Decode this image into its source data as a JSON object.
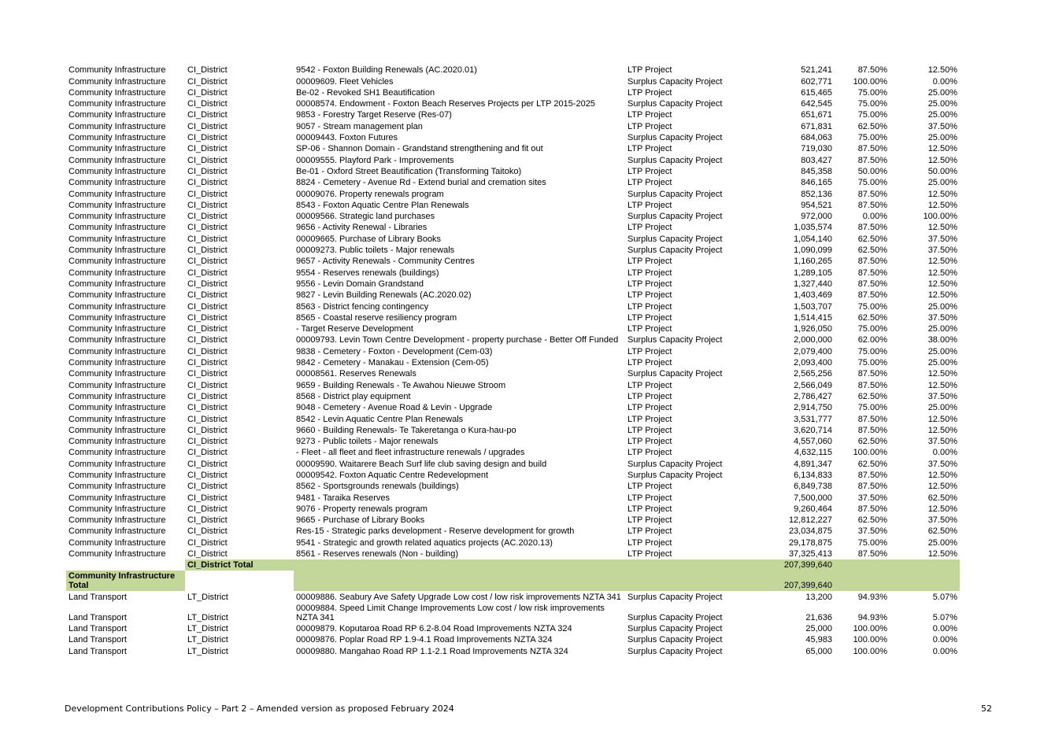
{
  "rows": [
    {
      "type": "data",
      "group": "Community Infrastructure",
      "district": "CI_District",
      "project": "9542 - Foxton Building Renewals (AC.2020.01)",
      "category": "LTP Project",
      "amount": "521,241",
      "pct1": "87.50%",
      "pct2": "12.50%"
    },
    {
      "type": "data",
      "group": "Community Infrastructure",
      "district": "CI_District",
      "project": "00009609. Fleet Vehicles",
      "category": "Surplus Capacity Project",
      "amount": "602,771",
      "pct1": "100.00%",
      "pct2": "0.00%"
    },
    {
      "type": "data",
      "group": "Community Infrastructure",
      "district": "CI_District",
      "project": "Be-02 - Revoked SH1 Beautification",
      "category": "LTP Project",
      "amount": "615,465",
      "pct1": "75.00%",
      "pct2": "25.00%"
    },
    {
      "type": "data",
      "group": "Community Infrastructure",
      "district": "CI_District",
      "project": "00008574. Endowment - Foxton Beach Reserves Projects per LTP 2015-2025",
      "category": "Surplus Capacity Project",
      "amount": "642,545",
      "pct1": "75.00%",
      "pct2": "25.00%"
    },
    {
      "type": "data",
      "group": "Community Infrastructure",
      "district": "CI_District",
      "project": "9853 - Forestry Target Reserve (Res-07)",
      "category": "LTP Project",
      "amount": "651,671",
      "pct1": "75.00%",
      "pct2": "25.00%"
    },
    {
      "type": "data",
      "group": "Community Infrastructure",
      "district": "CI_District",
      "project": "9057 - Stream management plan",
      "category": "LTP Project",
      "amount": "671,831",
      "pct1": "62.50%",
      "pct2": "37.50%"
    },
    {
      "type": "data",
      "group": "Community Infrastructure",
      "district": "CI_District",
      "project": "00009443. Foxton Futures",
      "category": "Surplus Capacity Project",
      "amount": "684,063",
      "pct1": "75.00%",
      "pct2": "25.00%"
    },
    {
      "type": "data",
      "group": "Community Infrastructure",
      "district": "CI_District",
      "project": "SP-06 - Shannon Domain - Grandstand strengthening and fit out",
      "category": "LTP Project",
      "amount": "719,030",
      "pct1": "87.50%",
      "pct2": "12.50%"
    },
    {
      "type": "data",
      "group": "Community Infrastructure",
      "district": "CI_District",
      "project": "00009555. Playford Park - Improvements",
      "category": "Surplus Capacity Project",
      "amount": "803,427",
      "pct1": "87.50%",
      "pct2": "12.50%"
    },
    {
      "type": "data",
      "group": "Community Infrastructure",
      "district": "CI_District",
      "project": "Be-01 - Oxford Street Beautification (Transforming Taitoko)",
      "category": "LTP Project",
      "amount": "845,358",
      "pct1": "50.00%",
      "pct2": "50.00%"
    },
    {
      "type": "data",
      "group": "Community Infrastructure",
      "district": "CI_District",
      "project": "8824 - Cemetery - Avenue Rd - Extend burial and cremation sites",
      "category": "LTP Project",
      "amount": "846,165",
      "pct1": "75.00%",
      "pct2": "25.00%"
    },
    {
      "type": "data",
      "group": "Community Infrastructure",
      "district": "CI_District",
      "project": "00009076. Property renewals program",
      "category": "Surplus Capacity Project",
      "amount": "852,136",
      "pct1": "87.50%",
      "pct2": "12.50%"
    },
    {
      "type": "data",
      "group": "Community Infrastructure",
      "district": "CI_District",
      "project": "8543 - Foxton Aquatic Centre Plan Renewals",
      "category": "LTP Project",
      "amount": "954,521",
      "pct1": "87.50%",
      "pct2": "12.50%"
    },
    {
      "type": "data",
      "group": "Community Infrastructure",
      "district": "CI_District",
      "project": "00009566. Strategic land purchases",
      "category": "Surplus Capacity Project",
      "amount": "972,000",
      "pct1": "0.00%",
      "pct2": "100.00%"
    },
    {
      "type": "data",
      "group": "Community Infrastructure",
      "district": "CI_District",
      "project": "9656 - Activity Renewal - Libraries",
      "category": "LTP Project",
      "amount": "1,035,574",
      "pct1": "87.50%",
      "pct2": "12.50%"
    },
    {
      "type": "data",
      "group": "Community Infrastructure",
      "district": "CI_District",
      "project": "00009665. Purchase of Library Books",
      "category": "Surplus Capacity Project",
      "amount": "1,054,140",
      "pct1": "62.50%",
      "pct2": "37.50%"
    },
    {
      "type": "data",
      "group": "Community Infrastructure",
      "district": "CI_District",
      "project": "00009273. Public toilets - Major renewals",
      "category": "Surplus Capacity Project",
      "amount": "1,090,099",
      "pct1": "62.50%",
      "pct2": "37.50%"
    },
    {
      "type": "data",
      "group": "Community Infrastructure",
      "district": "CI_District",
      "project": "9657 - Activity Renewals - Community Centres",
      "category": "LTP Project",
      "amount": "1,160,265",
      "pct1": "87.50%",
      "pct2": "12.50%"
    },
    {
      "type": "data",
      "group": "Community Infrastructure",
      "district": "CI_District",
      "project": "9554 - Reserves renewals (buildings)",
      "category": "LTP Project",
      "amount": "1,289,105",
      "pct1": "87.50%",
      "pct2": "12.50%"
    },
    {
      "type": "data",
      "group": "Community Infrastructure",
      "district": "CI_District",
      "project": "9556 - Levin Domain Grandstand",
      "category": "LTP Project",
      "amount": "1,327,440",
      "pct1": "87.50%",
      "pct2": "12.50%"
    },
    {
      "type": "data",
      "group": "Community Infrastructure",
      "district": "CI_District",
      "project": "9827 - Levin Building Renewals (AC.2020.02)",
      "category": "LTP Project",
      "amount": "1,403,469",
      "pct1": "87.50%",
      "pct2": "12.50%"
    },
    {
      "type": "data",
      "group": "Community Infrastructure",
      "district": "CI_District",
      "project": "8563 - District fencing contingency",
      "category": "LTP Project",
      "amount": "1,503,707",
      "pct1": "75.00%",
      "pct2": "25.00%"
    },
    {
      "type": "data",
      "group": "Community Infrastructure",
      "district": "CI_District",
      "project": "8565 - Coastal reserve resiliency program",
      "category": "LTP Project",
      "amount": "1,514,415",
      "pct1": "62.50%",
      "pct2": "37.50%"
    },
    {
      "type": "data",
      "group": "Community Infrastructure",
      "district": "CI_District",
      "project": " - Target Reserve Development",
      "category": "LTP Project",
      "amount": "1,926,050",
      "pct1": "75.00%",
      "pct2": "25.00%"
    },
    {
      "type": "data",
      "group": "Community Infrastructure",
      "district": "CI_District",
      "project": "00009793. Levin Town Centre Development - property purchase - Better Off Funded",
      "category": "Surplus Capacity Project",
      "amount": "2,000,000",
      "pct1": "62.00%",
      "pct2": "38.00%",
      "wrap": true
    },
    {
      "type": "data",
      "group": "Community Infrastructure",
      "district": "CI_District",
      "project": "9838 - Cemetery - Foxton - Development (Cem-03)",
      "category": "LTP Project",
      "amount": "2,079,400",
      "pct1": "75.00%",
      "pct2": "25.00%"
    },
    {
      "type": "data",
      "group": "Community Infrastructure",
      "district": "CI_District",
      "project": "9842 - Cemetery - Manakau - Extension (Cem-05)",
      "category": "LTP Project",
      "amount": "2,093,400",
      "pct1": "75.00%",
      "pct2": "25.00%"
    },
    {
      "type": "data",
      "group": "Community Infrastructure",
      "district": "CI_District",
      "project": "00008561. Reserves Renewals",
      "category": "Surplus Capacity Project",
      "amount": "2,565,256",
      "pct1": "87.50%",
      "pct2": "12.50%"
    },
    {
      "type": "data",
      "group": "Community Infrastructure",
      "district": "CI_District",
      "project": "9659 - Building Renewals - Te Awahou Nieuwe Stroom",
      "category": "LTP Project",
      "amount": "2,566,049",
      "pct1": "87.50%",
      "pct2": "12.50%"
    },
    {
      "type": "data",
      "group": "Community Infrastructure",
      "district": "CI_District",
      "project": "8568 - District play equipment",
      "category": "LTP Project",
      "amount": "2,786,427",
      "pct1": "62.50%",
      "pct2": "37.50%"
    },
    {
      "type": "data",
      "group": "Community Infrastructure",
      "district": "CI_District",
      "project": "9048 - Cemetery - Avenue Road &  Levin - Upgrade",
      "category": "LTP Project",
      "amount": "2,914,750",
      "pct1": "75.00%",
      "pct2": "25.00%"
    },
    {
      "type": "data",
      "group": "Community Infrastructure",
      "district": "CI_District",
      "project": "8542 - Levin Aquatic Centre Plan Renewals",
      "category": "LTP Project",
      "amount": "3,531,777",
      "pct1": "87.50%",
      "pct2": "12.50%"
    },
    {
      "type": "data",
      "group": "Community Infrastructure",
      "district": "CI_District",
      "project": "9660 - Building Renewals- Te Takeretanga o Kura-hau-po",
      "category": "LTP Project",
      "amount": "3,620,714",
      "pct1": "87.50%",
      "pct2": "12.50%"
    },
    {
      "type": "data",
      "group": "Community Infrastructure",
      "district": "CI_District",
      "project": "9273 - Public toilets - Major renewals",
      "category": "LTP Project",
      "amount": "4,557,060",
      "pct1": "62.50%",
      "pct2": "37.50%"
    },
    {
      "type": "data",
      "group": "Community Infrastructure",
      "district": "CI_District",
      "project": " - Fleet - all fleet and fleet infrastructure renewals / upgrades",
      "category": "LTP Project",
      "amount": "4,632,115",
      "pct1": "100.00%",
      "pct2": "0.00%"
    },
    {
      "type": "data",
      "group": "Community Infrastructure",
      "district": "CI_District",
      "project": "00009590. Waitarere Beach Surf life club saving design and build",
      "category": "Surplus Capacity Project",
      "amount": "4,891,347",
      "pct1": "62.50%",
      "pct2": "37.50%"
    },
    {
      "type": "data",
      "group": "Community Infrastructure",
      "district": "CI_District",
      "project": "00009542. Foxton Aquatic Centre Redevelopment",
      "category": "Surplus Capacity Project",
      "amount": "6,134,833",
      "pct1": "87.50%",
      "pct2": "12.50%"
    },
    {
      "type": "data",
      "group": "Community Infrastructure",
      "district": "CI_District",
      "project": "8562 - Sportsgrounds renewals (buildings)",
      "category": "LTP Project",
      "amount": "6,849,738",
      "pct1": "87.50%",
      "pct2": "12.50%"
    },
    {
      "type": "data",
      "group": "Community Infrastructure",
      "district": "CI_District",
      "project": "9481 - Taraika Reserves",
      "category": "LTP Project",
      "amount": "7,500,000",
      "pct1": "37.50%",
      "pct2": "62.50%"
    },
    {
      "type": "data",
      "group": "Community Infrastructure",
      "district": "CI_District",
      "project": "9076 - Property renewals program",
      "category": "LTP Project",
      "amount": "9,260,464",
      "pct1": "87.50%",
      "pct2": "12.50%"
    },
    {
      "type": "data",
      "group": "Community Infrastructure",
      "district": "CI_District",
      "project": "9665 - Purchase of Library Books",
      "category": "LTP Project",
      "amount": "12,812,227",
      "pct1": "62.50%",
      "pct2": "37.50%"
    },
    {
      "type": "data",
      "group": "Community Infrastructure",
      "district": "CI_District",
      "project": "Res-15 - Strategic parks development - Reserve development for growth",
      "category": "LTP Project",
      "amount": "23,034,875",
      "pct1": "37.50%",
      "pct2": "62.50%"
    },
    {
      "type": "data",
      "group": "Community Infrastructure",
      "district": "CI_District",
      "project": "9541 - Strategic and growth related aquatics projects (AC.2020.13)",
      "category": "LTP Project",
      "amount": "29,178,875",
      "pct1": "75.00%",
      "pct2": "25.00%"
    },
    {
      "type": "data",
      "group": "Community Infrastructure",
      "district": "CI_District",
      "project": "8561 - Reserves renewals (Non - building)",
      "category": "LTP Project",
      "amount": "37,325,413",
      "pct1": "87.50%",
      "pct2": "12.50%"
    },
    {
      "type": "subtotal",
      "group": "",
      "district": "CI_District Total",
      "project": "",
      "category": "",
      "amount": "207,399,640",
      "pct1": "",
      "pct2": ""
    },
    {
      "type": "total",
      "group": "Community Infrastructure Total",
      "district": "",
      "project": "",
      "category": "",
      "amount": "207,399,640",
      "pct1": "",
      "pct2": ""
    },
    {
      "type": "data",
      "group": "Land Transport",
      "district": "LT_District",
      "project": "00009886. Seabury Ave Safety Upgrade Low cost / low risk improvements NZTA 341",
      "category": "Surplus Capacity Project",
      "amount": "13,200",
      "pct1": "94.93%",
      "pct2": "5.07%",
      "wrap": true
    },
    {
      "type": "data",
      "group": "Land Transport",
      "district": "LT_District",
      "project": "00009884. Speed Limit Change Improvements Low cost / low risk improvements NZTA 341",
      "category": "Surplus Capacity Project",
      "amount": "21,636",
      "pct1": "94.93%",
      "pct2": "5.07%",
      "wrap": true
    },
    {
      "type": "data",
      "group": "Land Transport",
      "district": "LT_District",
      "project": "00009879. Koputaroa Road RP 6.2-8.04 Road Improvements NZTA 324",
      "category": "Surplus Capacity Project",
      "amount": "25,000",
      "pct1": "100.00%",
      "pct2": "0.00%"
    },
    {
      "type": "data",
      "group": "Land Transport",
      "district": "LT_District",
      "project": "00009876. Poplar Road RP 1.9-4.1 Road Improvements NZTA 324",
      "category": "Surplus Capacity Project",
      "amount": "45,983",
      "pct1": "100.00%",
      "pct2": "0.00%"
    },
    {
      "type": "data",
      "group": "Land Transport",
      "district": "LT_District",
      "project": "00009880. Mangahao Road RP 1.1-2.1 Road Improvements NZTA 324",
      "category": "Surplus Capacity Project",
      "amount": "65,000",
      "pct1": "100.00%",
      "pct2": "0.00%"
    }
  ],
  "footer": {
    "title": "Development Contributions Policy – Part 2 –  Amended version as proposed February 2024",
    "page_number": "52"
  }
}
